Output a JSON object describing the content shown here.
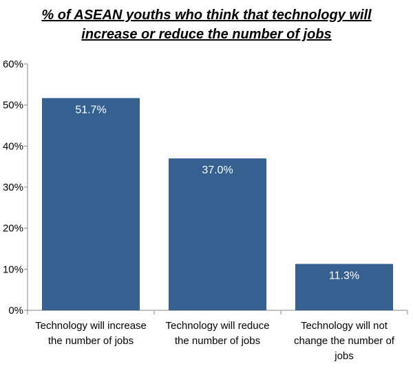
{
  "chart_data": {
    "type": "bar",
    "title_lines": [
      "% of ASEAN youths who think that technology will",
      "increase or reduce the number of jobs"
    ],
    "categories": [
      [
        "Technology will increase",
        "the number of jobs"
      ],
      [
        "Technology will reduce",
        "the number of jobs"
      ],
      [
        "Technology will not",
        "change the number of",
        "jobs"
      ]
    ],
    "values": [
      51.7,
      37.0,
      11.3
    ],
    "data_labels": [
      "51.7%",
      "37.0%",
      "11.3%"
    ],
    "ylim": [
      0,
      60
    ],
    "yticks": [
      0,
      10,
      20,
      30,
      40,
      50,
      60
    ],
    "ytick_labels": [
      "0%",
      "10%",
      "20%",
      "30%",
      "40%",
      "50%",
      "60%"
    ],
    "xlabel": "",
    "ylabel": "",
    "grid": false,
    "legend": "none",
    "bar_color": "#36608f",
    "axis_color": "#868686"
  }
}
